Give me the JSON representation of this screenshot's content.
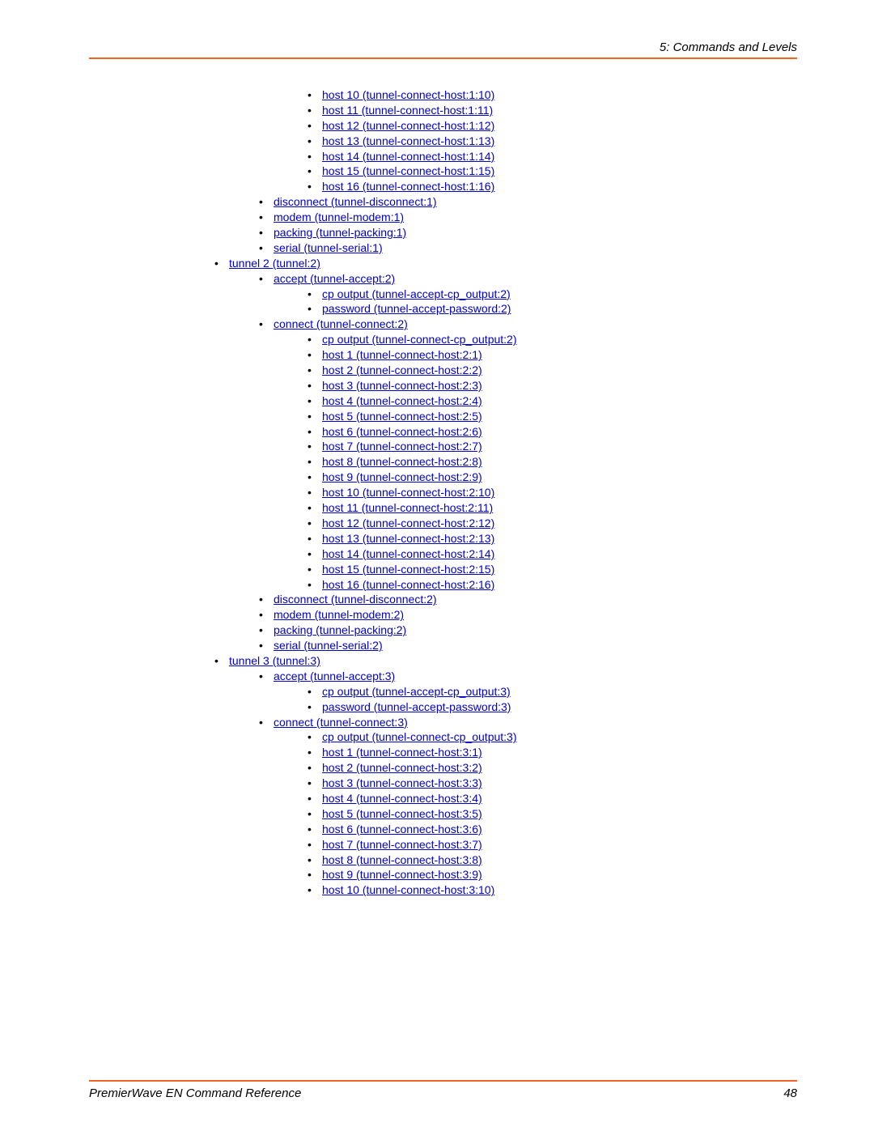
{
  "header": {
    "chapter": "5: Commands and Levels"
  },
  "footer": {
    "title": "PremierWave EN Command Reference",
    "page": "48"
  },
  "colors": {
    "rule": "#f26522",
    "link": "#0000cc"
  },
  "items": [
    {
      "lvl": 3,
      "text": "host 10 (tunnel-connect-host:1:10)"
    },
    {
      "lvl": 3,
      "text": "host 11 (tunnel-connect-host:1:11)"
    },
    {
      "lvl": 3,
      "text": "host 12 (tunnel-connect-host:1:12)"
    },
    {
      "lvl": 3,
      "text": "host 13 (tunnel-connect-host:1:13)"
    },
    {
      "lvl": 3,
      "text": "host 14 (tunnel-connect-host:1:14)"
    },
    {
      "lvl": 3,
      "text": "host 15 (tunnel-connect-host:1:15)"
    },
    {
      "lvl": 3,
      "text": "host 16 (tunnel-connect-host:1:16)"
    },
    {
      "lvl": 2,
      "text": "disconnect (tunnel-disconnect:1)"
    },
    {
      "lvl": 2,
      "text": "modem (tunnel-modem:1)"
    },
    {
      "lvl": 2,
      "text": "packing (tunnel-packing:1)"
    },
    {
      "lvl": 2,
      "text": "serial (tunnel-serial:1)"
    },
    {
      "lvl": 1,
      "text": "tunnel 2 (tunnel:2)"
    },
    {
      "lvl": 2,
      "text": "accept (tunnel-accept:2)"
    },
    {
      "lvl": 3,
      "text": "cp output (tunnel-accept-cp_output:2)"
    },
    {
      "lvl": 3,
      "text": "password (tunnel-accept-password:2)"
    },
    {
      "lvl": 2,
      "text": "connect (tunnel-connect:2)"
    },
    {
      "lvl": 3,
      "text": "cp output (tunnel-connect-cp_output:2)"
    },
    {
      "lvl": 3,
      "text": "host 1 (tunnel-connect-host:2:1)"
    },
    {
      "lvl": 3,
      "text": "host 2 (tunnel-connect-host:2:2)"
    },
    {
      "lvl": 3,
      "text": "host 3 (tunnel-connect-host:2:3)"
    },
    {
      "lvl": 3,
      "text": "host 4 (tunnel-connect-host:2:4)"
    },
    {
      "lvl": 3,
      "text": "host 5 (tunnel-connect-host:2:5)"
    },
    {
      "lvl": 3,
      "text": "host 6 (tunnel-connect-host:2:6)"
    },
    {
      "lvl": 3,
      "text": "host 7 (tunnel-connect-host:2:7)"
    },
    {
      "lvl": 3,
      "text": "host 8 (tunnel-connect-host:2:8)"
    },
    {
      "lvl": 3,
      "text": "host 9 (tunnel-connect-host:2:9)"
    },
    {
      "lvl": 3,
      "text": "host 10 (tunnel-connect-host:2:10)"
    },
    {
      "lvl": 3,
      "text": "host 11 (tunnel-connect-host:2:11)"
    },
    {
      "lvl": 3,
      "text": "host 12 (tunnel-connect-host:2:12)"
    },
    {
      "lvl": 3,
      "text": "host 13 (tunnel-connect-host:2:13)"
    },
    {
      "lvl": 3,
      "text": "host 14 (tunnel-connect-host:2:14)"
    },
    {
      "lvl": 3,
      "text": "host 15 (tunnel-connect-host:2:15)"
    },
    {
      "lvl": 3,
      "text": "host 16 (tunnel-connect-host:2:16)"
    },
    {
      "lvl": 2,
      "text": "disconnect (tunnel-disconnect:2)"
    },
    {
      "lvl": 2,
      "text": "modem (tunnel-modem:2)"
    },
    {
      "lvl": 2,
      "text": "packing (tunnel-packing:2)"
    },
    {
      "lvl": 2,
      "text": "serial (tunnel-serial:2)"
    },
    {
      "lvl": 1,
      "text": "tunnel 3 (tunnel:3)"
    },
    {
      "lvl": 2,
      "text": "accept (tunnel-accept:3)"
    },
    {
      "lvl": 3,
      "text": "cp output (tunnel-accept-cp_output:3)"
    },
    {
      "lvl": 3,
      "text": "password (tunnel-accept-password:3)"
    },
    {
      "lvl": 2,
      "text": "connect (tunnel-connect:3)"
    },
    {
      "lvl": 3,
      "text": "cp output (tunnel-connect-cp_output:3)"
    },
    {
      "lvl": 3,
      "text": "host 1 (tunnel-connect-host:3:1)"
    },
    {
      "lvl": 3,
      "text": "host 2 (tunnel-connect-host:3:2)"
    },
    {
      "lvl": 3,
      "text": "host 3 (tunnel-connect-host:3:3)"
    },
    {
      "lvl": 3,
      "text": "host 4 (tunnel-connect-host:3:4)"
    },
    {
      "lvl": 3,
      "text": "host 5 (tunnel-connect-host:3:5)"
    },
    {
      "lvl": 3,
      "text": "host 6 (tunnel-connect-host:3:6)"
    },
    {
      "lvl": 3,
      "text": "host 7 (tunnel-connect-host:3:7)"
    },
    {
      "lvl": 3,
      "text": "host 8 (tunnel-connect-host:3:8)"
    },
    {
      "lvl": 3,
      "text": "host 9 (tunnel-connect-host:3:9)"
    },
    {
      "lvl": 3,
      "text": "host 10 (tunnel-connect-host:3:10)"
    }
  ]
}
